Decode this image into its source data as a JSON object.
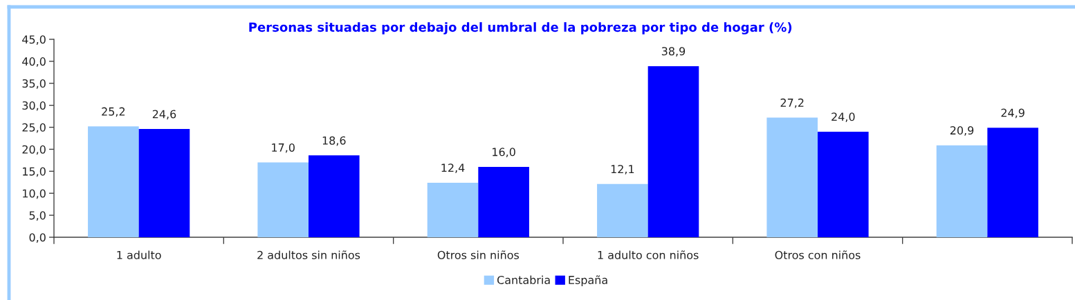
{
  "chart_data": {
    "type": "bar",
    "title": "Personas situadas por debajo del umbral de la pobreza por tipo de hogar (%)",
    "categories": [
      "1 adulto",
      "2 adultos sin niños",
      "Otros sin niños",
      "1 adulto con niños",
      "Otros con niños",
      null
    ],
    "series": [
      {
        "name": "Cantabria",
        "color": "#99ccff",
        "values": [
          25.2,
          17.0,
          12.4,
          12.1,
          27.2,
          20.9
        ],
        "value_labels": [
          "25,2",
          "17,0",
          "12,4",
          "12,1",
          "27,2",
          "20,9"
        ]
      },
      {
        "name": "España",
        "color": "#0000ff",
        "values": [
          24.6,
          18.6,
          16.0,
          38.9,
          24.0,
          24.9
        ],
        "value_labels": [
          "24,6",
          "18,6",
          "16,0",
          "38,9",
          "24,0",
          "24,9"
        ]
      }
    ],
    "ylim": [
      0,
      45
    ],
    "yticks": [
      {
        "value": 0,
        "label": "0,0"
      },
      {
        "value": 5,
        "label": "5,0"
      },
      {
        "value": 10,
        "label": "10,0"
      },
      {
        "value": 15,
        "label": "15,0"
      },
      {
        "value": 20,
        "label": "20,0"
      },
      {
        "value": 25,
        "label": "25,0"
      },
      {
        "value": 30,
        "label": "30,0"
      },
      {
        "value": 35,
        "label": "35,0"
      },
      {
        "value": 40,
        "label": "40,0"
      },
      {
        "value": 45,
        "label": "45,0"
      }
    ],
    "legend": "bottom"
  }
}
